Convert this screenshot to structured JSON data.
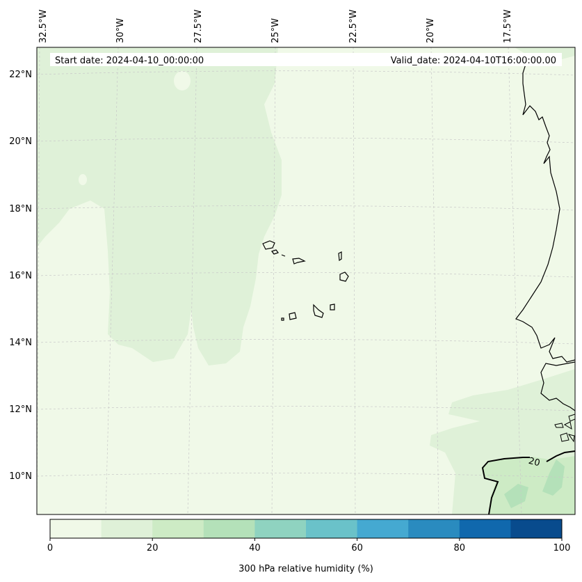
{
  "header": {
    "start_date": "Start date: 2024-04-10_00:00:00",
    "valid_date": "Valid_date: 2024-04-10T16:00:00.00"
  },
  "map": {
    "lon_labels": [
      "32.5°W",
      "30°W",
      "27.5°W",
      "25°W",
      "22.5°W",
      "20°W",
      "17.5°W"
    ],
    "lat_labels": [
      "22°N",
      "20°N",
      "18°N",
      "16°N",
      "14°N",
      "12°N",
      "10°N"
    ],
    "contour_label": "20",
    "colors": {
      "land_line": "#000000",
      "grid": "#c8c8c8"
    }
  },
  "colorbar": {
    "label": "300 hPa relative humidity (%)",
    "tick_labels": [
      "0",
      "20",
      "40",
      "60",
      "80",
      "100"
    ],
    "colors": [
      "#f0f9e8",
      "#dff1d8",
      "#cdebc5",
      "#b4e1b9",
      "#8fd3c0",
      "#6ac2c9",
      "#45a9d1",
      "#2a8bbf",
      "#1068ad",
      "#084b8d"
    ]
  }
}
